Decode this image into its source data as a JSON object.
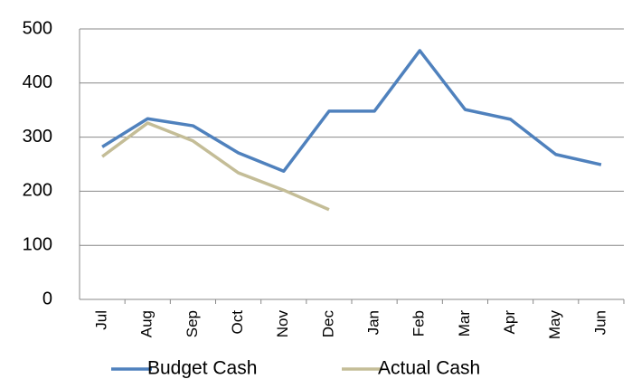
{
  "chart_data": {
    "type": "line",
    "categories": [
      "Jul",
      "Aug",
      "Sep",
      "Oct",
      "Nov",
      "Dec",
      "Jan",
      "Feb",
      "Mar",
      "Apr",
      "May",
      "Jun"
    ],
    "series": [
      {
        "name": "Budget Cash",
        "color": "#4f81bd",
        "values": [
          282,
          334,
          321,
          271,
          237,
          348,
          348,
          460,
          351,
          333,
          268,
          249
        ]
      },
      {
        "name": "Actual Cash",
        "color": "#c4bd97",
        "values": [
          264,
          326,
          293,
          234,
          202,
          166,
          null,
          null,
          null,
          null,
          null,
          null
        ]
      }
    ],
    "ylim": [
      0,
      500
    ],
    "yticks": [
      0,
      100,
      200,
      300,
      400,
      500
    ],
    "grid": true,
    "legend": "bottom"
  }
}
